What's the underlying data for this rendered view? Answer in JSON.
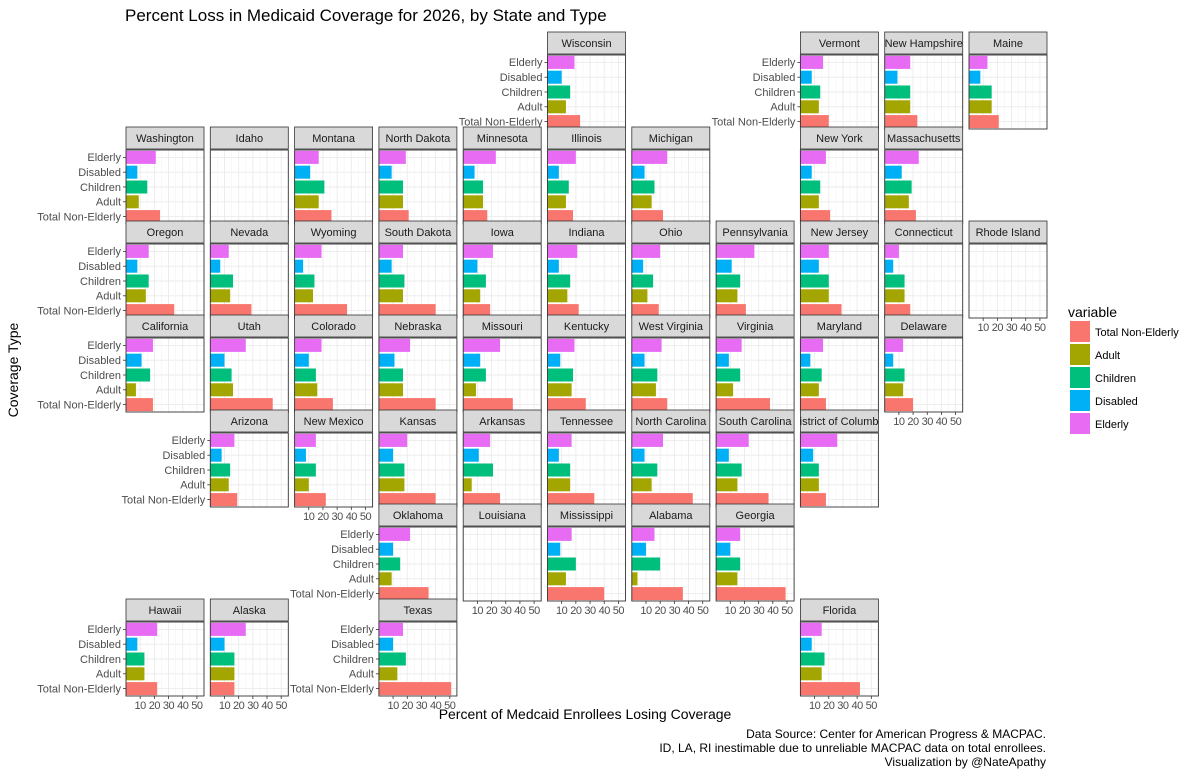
{
  "chart_data": {
    "type": "bar",
    "orientation": "horizontal",
    "layout": "geofacet",
    "title": "Percent Loss in Medicaid Coverage for 2026, by State and Type",
    "xlabel": "Percent of Medcaid Enrollees Losing Coverage",
    "ylabel": "Coverage Type",
    "categories": [
      "Elderly",
      "Disabled",
      "Children",
      "Adult",
      "Total Non-Elderly"
    ],
    "x_ticks": [
      "10",
      "20",
      "30",
      "40",
      "50"
    ],
    "xlim": [
      0,
      55
    ],
    "grid": true,
    "legend": {
      "title": "variable",
      "position": "right",
      "entries": [
        {
          "label": "Total Non-Elderly",
          "color": "#F8766D"
        },
        {
          "label": "Adult",
          "color": "#A3A500"
        },
        {
          "label": "Children",
          "color": "#00BF7D"
        },
        {
          "label": "Disabled",
          "color": "#00B0F6"
        },
        {
          "label": "Elderly",
          "color": "#E76BF3"
        }
      ]
    },
    "colors": {
      "Elderly": "#E76BF3",
      "Disabled": "#00B0F6",
      "Children": "#00BF7D",
      "Adult": "#A3A500",
      "Total Non-Elderly": "#F8766D"
    },
    "states": [
      {
        "name": "Wisconsin",
        "row": 0,
        "col": 5,
        "values": {
          "Elderly": 19,
          "Disabled": 10,
          "Children": 16,
          "Adult": 13,
          "Total Non-Elderly": 23
        }
      },
      {
        "name": "Vermont",
        "row": 0,
        "col": 8,
        "values": {
          "Elderly": 16,
          "Disabled": 8,
          "Children": 14,
          "Adult": 13,
          "Total Non-Elderly": 20
        }
      },
      {
        "name": "New Hampshire",
        "row": 0,
        "col": 9,
        "values": {
          "Elderly": 18,
          "Disabled": 9,
          "Children": 18,
          "Adult": 18,
          "Total Non-Elderly": 23
        }
      },
      {
        "name": "Maine",
        "row": 0,
        "col": 10,
        "values": {
          "Elderly": 13,
          "Disabled": 8,
          "Children": 16,
          "Adult": 16,
          "Total Non-Elderly": 21
        }
      },
      {
        "name": "Washington",
        "row": 1,
        "col": 0,
        "values": {
          "Elderly": 21,
          "Disabled": 8,
          "Children": 15,
          "Adult": 9,
          "Total Non-Elderly": 24
        }
      },
      {
        "name": "Idaho",
        "row": 1,
        "col": 1,
        "values": null
      },
      {
        "name": "Montana",
        "row": 1,
        "col": 2,
        "values": {
          "Elderly": 17,
          "Disabled": 11,
          "Children": 21,
          "Adult": 17,
          "Total Non-Elderly": 26
        }
      },
      {
        "name": "North Dakota",
        "row": 1,
        "col": 3,
        "values": {
          "Elderly": 19,
          "Disabled": 9,
          "Children": 17,
          "Adult": 17,
          "Total Non-Elderly": 21
        }
      },
      {
        "name": "Minnesota",
        "row": 1,
        "col": 4,
        "values": {
          "Elderly": 23,
          "Disabled": 8,
          "Children": 14,
          "Adult": 14,
          "Total Non-Elderly": 17
        }
      },
      {
        "name": "Illinois",
        "row": 1,
        "col": 5,
        "values": {
          "Elderly": 20,
          "Disabled": 8,
          "Children": 15,
          "Adult": 13,
          "Total Non-Elderly": 18
        }
      },
      {
        "name": "Michigan",
        "row": 1,
        "col": 6,
        "values": {
          "Elderly": 25,
          "Disabled": 9,
          "Children": 16,
          "Adult": 14,
          "Total Non-Elderly": 22
        }
      },
      {
        "name": "New York",
        "row": 1,
        "col": 8,
        "values": {
          "Elderly": 18,
          "Disabled": 8,
          "Children": 14,
          "Adult": 13,
          "Total Non-Elderly": 21
        }
      },
      {
        "name": "Massachusetts",
        "row": 1,
        "col": 9,
        "values": {
          "Elderly": 24,
          "Disabled": 12,
          "Children": 19,
          "Adult": 17,
          "Total Non-Elderly": 22
        }
      },
      {
        "name": "Oregon",
        "row": 2,
        "col": 0,
        "values": {
          "Elderly": 16,
          "Disabled": 8,
          "Children": 16,
          "Adult": 14,
          "Total Non-Elderly": 34
        }
      },
      {
        "name": "Nevada",
        "row": 2,
        "col": 1,
        "values": {
          "Elderly": 13,
          "Disabled": 7,
          "Children": 16,
          "Adult": 14,
          "Total Non-Elderly": 29
        }
      },
      {
        "name": "Wyoming",
        "row": 2,
        "col": 2,
        "values": {
          "Elderly": 19,
          "Disabled": 6,
          "Children": 14,
          "Adult": 13,
          "Total Non-Elderly": 37
        }
      },
      {
        "name": "South Dakota",
        "row": 2,
        "col": 3,
        "values": {
          "Elderly": 17,
          "Disabled": 9,
          "Children": 18,
          "Adult": 17,
          "Total Non-Elderly": 40
        }
      },
      {
        "name": "Iowa",
        "row": 2,
        "col": 4,
        "values": {
          "Elderly": 21,
          "Disabled": 10,
          "Children": 16,
          "Adult": 12,
          "Total Non-Elderly": 19
        }
      },
      {
        "name": "Indiana",
        "row": 2,
        "col": 5,
        "values": {
          "Elderly": 21,
          "Disabled": 8,
          "Children": 16,
          "Adult": 14,
          "Total Non-Elderly": 22
        }
      },
      {
        "name": "Ohio",
        "row": 2,
        "col": 6,
        "values": {
          "Elderly": 20,
          "Disabled": 8,
          "Children": 15,
          "Adult": 11,
          "Total Non-Elderly": 19
        }
      },
      {
        "name": "Pennsylvania",
        "row": 2,
        "col": 7,
        "values": {
          "Elderly": 27,
          "Disabled": 11,
          "Children": 17,
          "Adult": 15,
          "Total Non-Elderly": 21
        }
      },
      {
        "name": "New Jersey",
        "row": 2,
        "col": 8,
        "values": {
          "Elderly": 20,
          "Disabled": 13,
          "Children": 20,
          "Adult": 20,
          "Total Non-Elderly": 29
        }
      },
      {
        "name": "Connecticut",
        "row": 2,
        "col": 9,
        "values": {
          "Elderly": 10,
          "Disabled": 6,
          "Children": 14,
          "Adult": 14,
          "Total Non-Elderly": 18
        }
      },
      {
        "name": "Rhode Island",
        "row": 2,
        "col": 10,
        "values": null
      },
      {
        "name": "California",
        "row": 3,
        "col": 0,
        "values": {
          "Elderly": 19,
          "Disabled": 11,
          "Children": 17,
          "Adult": 7,
          "Total Non-Elderly": 19
        }
      },
      {
        "name": "Utah",
        "row": 3,
        "col": 1,
        "values": {
          "Elderly": 25,
          "Disabled": 10,
          "Children": 15,
          "Adult": 16,
          "Total Non-Elderly": 44
        }
      },
      {
        "name": "Colorado",
        "row": 3,
        "col": 2,
        "values": {
          "Elderly": 19,
          "Disabled": 10,
          "Children": 15,
          "Adult": 16,
          "Total Non-Elderly": 27
        }
      },
      {
        "name": "Nebraska",
        "row": 3,
        "col": 3,
        "values": {
          "Elderly": 22,
          "Disabled": 11,
          "Children": 17,
          "Adult": 17,
          "Total Non-Elderly": 40
        }
      },
      {
        "name": "Missouri",
        "row": 3,
        "col": 4,
        "values": {
          "Elderly": 26,
          "Disabled": 12,
          "Children": 16,
          "Adult": 9,
          "Total Non-Elderly": 35
        }
      },
      {
        "name": "Kentucky",
        "row": 3,
        "col": 5,
        "values": {
          "Elderly": 19,
          "Disabled": 9,
          "Children": 18,
          "Adult": 17,
          "Total Non-Elderly": 27
        }
      },
      {
        "name": "West Virginia",
        "row": 3,
        "col": 6,
        "values": {
          "Elderly": 21,
          "Disabled": 9,
          "Children": 18,
          "Adult": 17,
          "Total Non-Elderly": 25
        }
      },
      {
        "name": "Virginia",
        "row": 3,
        "col": 7,
        "values": {
          "Elderly": 18,
          "Disabled": 9,
          "Children": 17,
          "Adult": 12,
          "Total Non-Elderly": 38
        }
      },
      {
        "name": "Maryland",
        "row": 3,
        "col": 8,
        "values": {
          "Elderly": 16,
          "Disabled": 7,
          "Children": 15,
          "Adult": 13,
          "Total Non-Elderly": 18
        }
      },
      {
        "name": "Delaware",
        "row": 3,
        "col": 9,
        "values": {
          "Elderly": 13,
          "Disabled": 6,
          "Children": 14,
          "Adult": 13,
          "Total Non-Elderly": 20
        }
      },
      {
        "name": "Arizona",
        "row": 4,
        "col": 1,
        "values": {
          "Elderly": 17,
          "Disabled": 8,
          "Children": 14,
          "Adult": 13,
          "Total Non-Elderly": 19
        }
      },
      {
        "name": "New Mexico",
        "row": 4,
        "col": 2,
        "values": {
          "Elderly": 15,
          "Disabled": 8,
          "Children": 15,
          "Adult": 10,
          "Total Non-Elderly": 22
        }
      },
      {
        "name": "Kansas",
        "row": 4,
        "col": 3,
        "values": {
          "Elderly": 20,
          "Disabled": 10,
          "Children": 18,
          "Adult": 18,
          "Total Non-Elderly": 40
        }
      },
      {
        "name": "Arkansas",
        "row": 4,
        "col": 4,
        "values": {
          "Elderly": 19,
          "Disabled": 11,
          "Children": 21,
          "Adult": 6,
          "Total Non-Elderly": 26
        }
      },
      {
        "name": "Tennessee",
        "row": 4,
        "col": 5,
        "values": {
          "Elderly": 17,
          "Disabled": 8,
          "Children": 16,
          "Adult": 16,
          "Total Non-Elderly": 33
        }
      },
      {
        "name": "North Carolina",
        "row": 4,
        "col": 6,
        "values": {
          "Elderly": 22,
          "Disabled": 9,
          "Children": 18,
          "Adult": 14,
          "Total Non-Elderly": 43
        }
      },
      {
        "name": "South Carolina",
        "row": 4,
        "col": 7,
        "values": {
          "Elderly": 23,
          "Disabled": 9,
          "Children": 18,
          "Adult": 15,
          "Total Non-Elderly": 37
        }
      },
      {
        "name": "District of Columbia",
        "row": 4,
        "col": 8,
        "values": {
          "Elderly": 26,
          "Disabled": 9,
          "Children": 13,
          "Adult": 13,
          "Total Non-Elderly": 18
        }
      },
      {
        "name": "Oklahoma",
        "row": 5,
        "col": 3,
        "values": {
          "Elderly": 22,
          "Disabled": 10,
          "Children": 15,
          "Adult": 9,
          "Total Non-Elderly": 35
        }
      },
      {
        "name": "Louisiana",
        "row": 5,
        "col": 4,
        "values": null
      },
      {
        "name": "Mississippi",
        "row": 5,
        "col": 5,
        "values": {
          "Elderly": 17,
          "Disabled": 9,
          "Children": 20,
          "Adult": 13,
          "Total Non-Elderly": 40
        }
      },
      {
        "name": "Alabama",
        "row": 5,
        "col": 6,
        "values": {
          "Elderly": 16,
          "Disabled": 10,
          "Children": 20,
          "Adult": 4,
          "Total Non-Elderly": 36
        }
      },
      {
        "name": "Georgia",
        "row": 5,
        "col": 7,
        "values": {
          "Elderly": 17,
          "Disabled": 10,
          "Children": 17,
          "Adult": 15,
          "Total Non-Elderly": 49
        }
      },
      {
        "name": "Hawaii",
        "row": 6,
        "col": 0,
        "values": {
          "Elderly": 22,
          "Disabled": 8,
          "Children": 13,
          "Adult": 13,
          "Total Non-Elderly": 22
        }
      },
      {
        "name": "Alaska",
        "row": 6,
        "col": 1,
        "values": {
          "Elderly": 25,
          "Disabled": 10,
          "Children": 17,
          "Adult": 17,
          "Total Non-Elderly": 17
        }
      },
      {
        "name": "Texas",
        "row": 6,
        "col": 3,
        "values": {
          "Elderly": 17,
          "Disabled": 10,
          "Children": 19,
          "Adult": 13,
          "Total Non-Elderly": 51
        }
      },
      {
        "name": "Florida",
        "row": 6,
        "col": 8,
        "values": {
          "Elderly": 15,
          "Disabled": 8,
          "Children": 17,
          "Adult": 15,
          "Total Non-Elderly": 42
        }
      }
    ],
    "x_axis_at": [
      {
        "row": 2,
        "col": 10
      },
      {
        "row": 3,
        "col": 9
      },
      {
        "row": 4,
        "col": 2
      },
      {
        "row": 5,
        "col": 4
      },
      {
        "row": 5,
        "col": 5
      },
      {
        "row": 5,
        "col": 6
      },
      {
        "row": 5,
        "col": 7
      },
      {
        "row": 6,
        "col": 0
      },
      {
        "row": 6,
        "col": 1
      },
      {
        "row": 6,
        "col": 3
      },
      {
        "row": 6,
        "col": 8
      }
    ],
    "y_axis_at": [
      {
        "row": 0,
        "col": 5
      },
      {
        "row": 0,
        "col": 8
      },
      {
        "row": 1,
        "col": 0
      },
      {
        "row": 2,
        "col": 0
      },
      {
        "row": 3,
        "col": 0
      },
      {
        "row": 4,
        "col": 1
      },
      {
        "row": 5,
        "col": 3
      },
      {
        "row": 6,
        "col": 0
      },
      {
        "row": 6,
        "col": 3
      }
    ],
    "caption": [
      "Data Source: Center for American Progress & MACPAC.",
      "ID, LA, RI inestimable due to unreliable MACPAC data on total enrollees.",
      "Visualization by @NateApathy"
    ]
  }
}
